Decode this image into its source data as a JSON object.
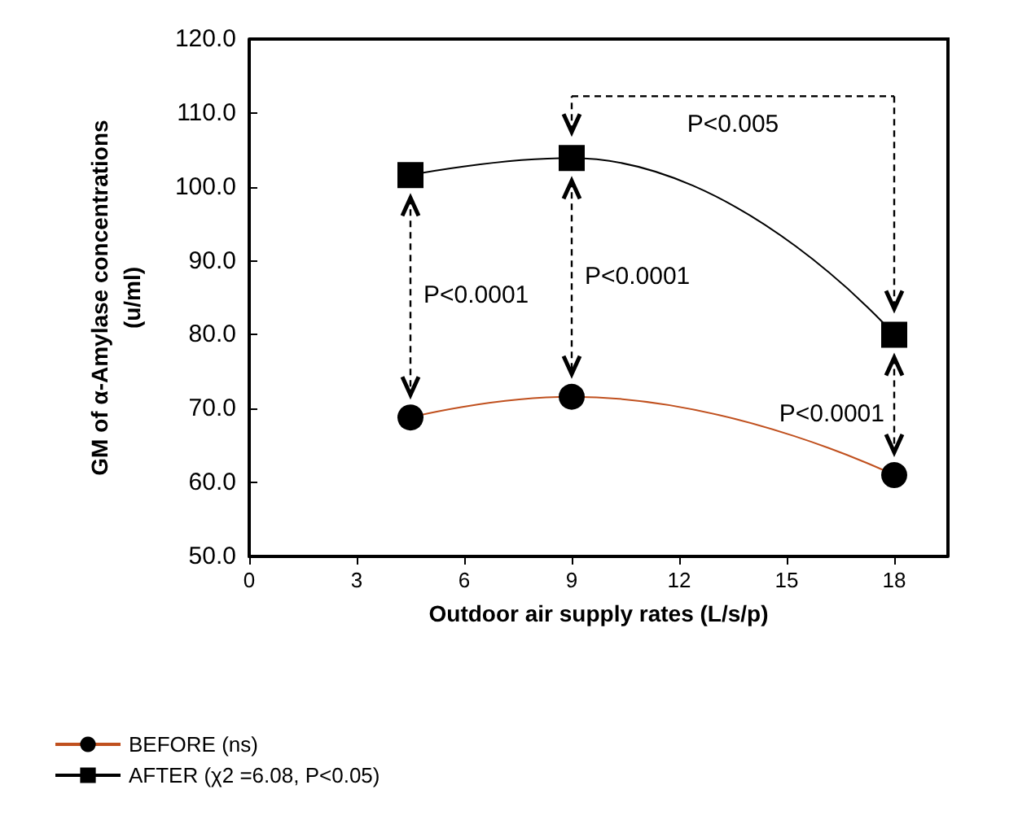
{
  "chart_data": {
    "type": "line",
    "xlabel": "Outdoor air supply rates (L/s/p)",
    "ylabel": "GM of α-Amylase concentrations\n(u/ml)",
    "xlim": [
      0,
      19.5
    ],
    "xticks": [
      0,
      3,
      6,
      9,
      12,
      15,
      18
    ],
    "ylim": [
      50,
      120
    ],
    "yticks": [
      {
        "value": 50,
        "label": "50.0"
      },
      {
        "value": 60,
        "label": "60.0"
      },
      {
        "value": 70,
        "label": "70.0"
      },
      {
        "value": 80,
        "label": "80.0"
      },
      {
        "value": 90,
        "label": "90.0"
      },
      {
        "value": 100,
        "label": "100.0"
      },
      {
        "value": 110,
        "label": "110.0"
      },
      {
        "value": 120,
        "label": "120.0"
      }
    ],
    "x": [
      4.5,
      9,
      18
    ],
    "series": [
      {
        "name": "BEFORE (ns)",
        "color": "#c0501e",
        "marker": "circle",
        "values": [
          68.8,
          71.6,
          61.0
        ]
      },
      {
        "name": "AFTER (χ2 =6.08, P<0.05)",
        "color": "#000000",
        "marker": "square",
        "values": [
          101.6,
          103.9,
          80.0
        ]
      }
    ],
    "annotations": [
      "P<0.0001",
      "P<0.0001",
      "P<0.0001",
      "P<0.005"
    ],
    "grid": false,
    "legend": "bottom left"
  }
}
